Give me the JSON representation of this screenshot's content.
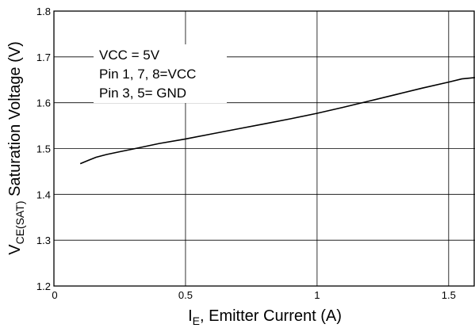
{
  "chart_data": {
    "type": "line",
    "title": "",
    "xlabel": {
      "main": "I",
      "sub": "E",
      "rest": ", Emitter Current (A)"
    },
    "ylabel": {
      "main": "V",
      "sub": "CE(SAT)",
      "rest": " Saturation Voltage (V)"
    },
    "xlim": [
      0,
      1.6
    ],
    "ylim": [
      1.2,
      1.8
    ],
    "xticks": [
      0,
      0.5,
      1,
      1.5
    ],
    "xtick_labels": [
      "0",
      "0.5",
      "1",
      "1.5"
    ],
    "yticks": [
      1.2,
      1.3,
      1.4,
      1.5,
      1.6,
      1.7,
      1.8
    ],
    "ytick_labels": [
      "1.2",
      "1.3",
      "1.4",
      "1.5",
      "1.6",
      "1.7",
      "1.8"
    ],
    "grid": true,
    "annotations": [
      "VCC = 5V",
      "Pin 1, 7, 8=VCC",
      "Pin 3, 5= GND"
    ],
    "series": [
      {
        "x": [
          0.1,
          0.13,
          0.16,
          0.2,
          0.25,
          0.3,
          0.35,
          0.4,
          0.5,
          0.6,
          0.7,
          0.8,
          0.9,
          1.0,
          1.1,
          1.2,
          1.3,
          1.4,
          1.5,
          1.55,
          1.6
        ],
        "values": [
          1.467,
          1.474,
          1.481,
          1.487,
          1.493,
          1.499,
          1.505,
          1.511,
          1.521,
          1.532,
          1.543,
          1.554,
          1.565,
          1.577,
          1.59,
          1.604,
          1.618,
          1.632,
          1.645,
          1.652,
          1.655
        ]
      }
    ]
  }
}
